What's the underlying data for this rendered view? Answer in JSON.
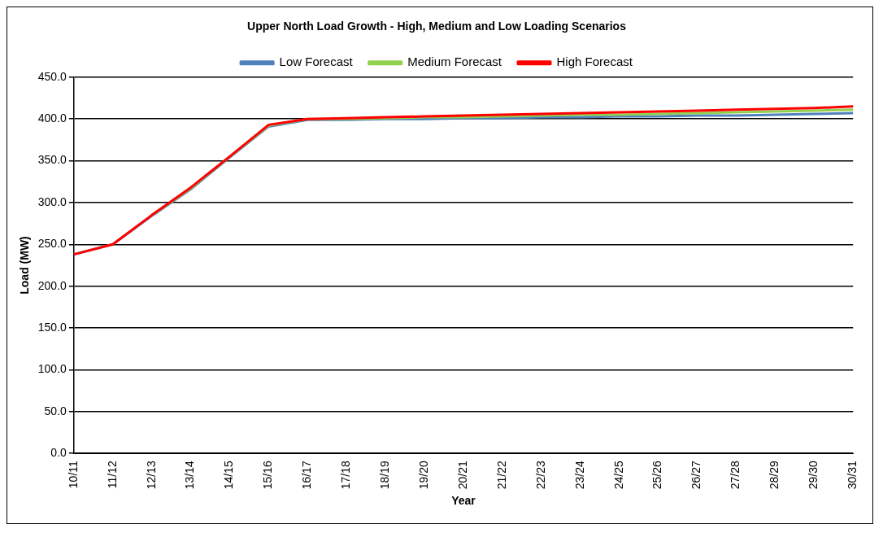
{
  "chart_data": {
    "type": "line",
    "title": "Upper North Load Growth - High, Medium and Low Loading Scenarios",
    "xlabel": "Year",
    "ylabel": "Load (MW)",
    "categories": [
      "10/11",
      "11/12",
      "12/13",
      "13/14",
      "14/15",
      "15/16",
      "16/17",
      "17/18",
      "18/19",
      "19/20",
      "20/21",
      "21/22",
      "22/23",
      "23/24",
      "24/25",
      "25/26",
      "26/27",
      "27/28",
      "28/29",
      "29/30",
      "30/31"
    ],
    "series": [
      {
        "name": "Low Forecast",
        "color": "#4f81bd",
        "values": [
          238,
          250,
          284,
          316,
          354,
          391,
          399,
          399,
          400,
          400,
          401,
          401,
          402,
          402,
          403,
          403,
          404,
          404,
          405,
          406,
          407
        ]
      },
      {
        "name": "Medium Forecast",
        "color": "#92d050",
        "values": [
          null,
          null,
          285,
          317,
          355,
          392,
          400,
          400,
          401,
          402,
          402,
          403,
          404,
          405,
          405,
          406,
          407,
          408,
          409,
          410,
          411
        ]
      },
      {
        "name": "High Forecast",
        "color": "#ff0000",
        "values": [
          238,
          250,
          285,
          318,
          355,
          393,
          400,
          401,
          402,
          403,
          404,
          405,
          406,
          407,
          408,
          409,
          410,
          411,
          412,
          413,
          415
        ]
      }
    ],
    "ylim": [
      0,
      450
    ],
    "yticks": [
      {
        "value": 0,
        "label": "0.0"
      },
      {
        "value": 50,
        "label": "50.0"
      },
      {
        "value": 100,
        "label": "100.0"
      },
      {
        "value": 150,
        "label": "150.0"
      },
      {
        "value": 200,
        "label": "200.0"
      },
      {
        "value": 250,
        "label": "250.0"
      },
      {
        "value": 300,
        "label": "300.0"
      },
      {
        "value": 350,
        "label": "350.0"
      },
      {
        "value": 400,
        "label": "400.0"
      },
      {
        "value": 450,
        "label": "450.0"
      }
    ],
    "grid": "y",
    "legend": "top",
    "marker": "none",
    "line_style": "solid"
  }
}
